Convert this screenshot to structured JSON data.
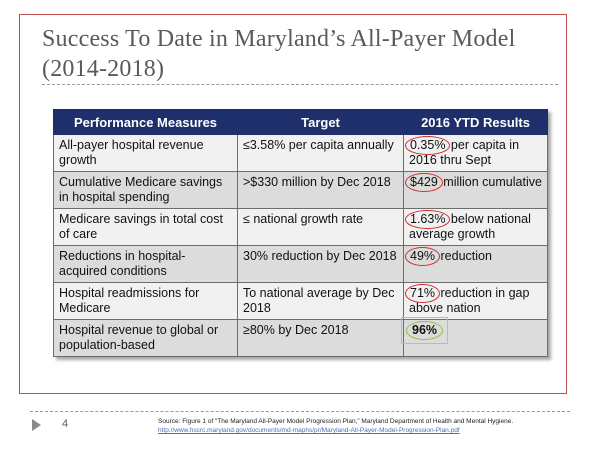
{
  "slide": {
    "title": "Success To Date in Maryland’s All-Payer Model (2014-2018)",
    "page_number": "4",
    "source_text": "Source:  Figure 1 of “The Maryland All-Payer Model Progression Plan,” Maryland Department of Health and Mental Hygiene.",
    "source_link": "http://www.hscrc.maryland.gov/documents/md-maphs/pr/Maryland-All-Payer-Model-Progression-Plan.pdf"
  },
  "table": {
    "headers": [
      "Performance Measures",
      "Target",
      "2016 YTD Results"
    ],
    "rows": [
      {
        "measure": "All-payer hospital revenue growth",
        "target": "≤3.58% per capita annually",
        "result_value": "0.35%",
        "result_rest": " per capita in 2016 thru Sept"
      },
      {
        "measure": "Cumulative Medicare savings in hospital spending",
        "target": ">$330 million by Dec 2018",
        "result_value": "$429",
        "result_rest": " million cumulative"
      },
      {
        "measure": "Medicare savings in total cost of care",
        "target": "≤ national growth rate",
        "result_value": "1.63%",
        "result_rest": " below national average growth"
      },
      {
        "measure": "Reductions in hospital-acquired conditions",
        "target": "30% reduction by Dec 2018",
        "result_value": "49%",
        "result_rest": " reduction"
      },
      {
        "measure": "Hospital readmissions for Medicare",
        "target": "To national average by Dec 2018",
        "result_value": "71%",
        "result_rest": " reduction in gap above nation"
      },
      {
        "measure": "Hospital revenue to global or population-based",
        "target": "≥80% by Dec 2018",
        "result_value": "96%",
        "result_rest": ""
      }
    ]
  },
  "colors": {
    "header_bg": "#1f2f6b",
    "frame_red": "#c0504d",
    "circle_red": "#d0302c",
    "circle_green": "#8cc43e"
  },
  "icons": {
    "nav": "play-triangle-icon"
  }
}
